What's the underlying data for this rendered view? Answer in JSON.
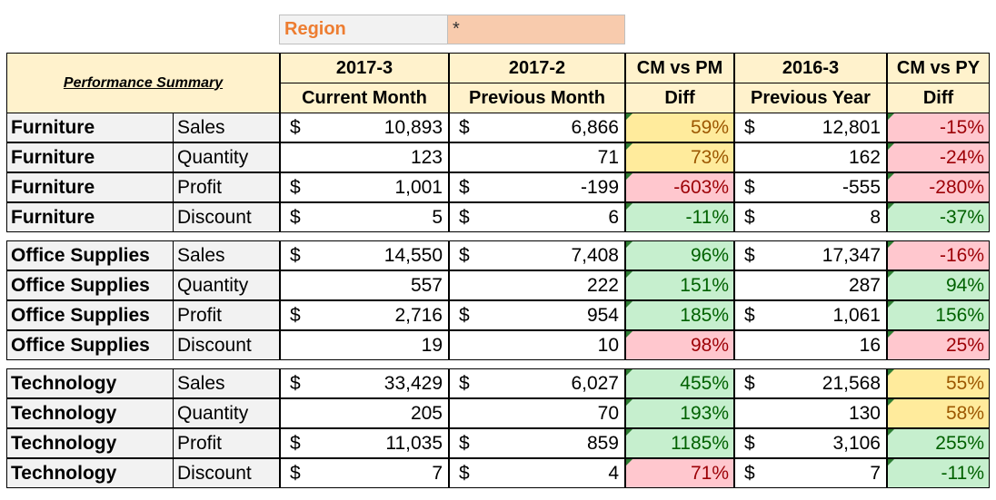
{
  "filter": {
    "label": "Region",
    "value": "*"
  },
  "header": {
    "title": "Performance Summary",
    "columns": [
      {
        "top": "2017-3",
        "bottom": "Current Month"
      },
      {
        "top": "2017-2",
        "bottom": "Previous Month"
      },
      {
        "top": "CM vs PM",
        "bottom": "Diff"
      },
      {
        "top": "2016-3",
        "bottom": "Previous Year"
      },
      {
        "top": "CM vs PY",
        "bottom": "Diff"
      }
    ]
  },
  "groups": [
    {
      "rows": [
        {
          "category": "Furniture",
          "metric": "Sales",
          "currency": "$",
          "cm": "10,893",
          "pm": "6,866",
          "cm_pm": "59%",
          "cm_pm_status": "y",
          "py": "12,801",
          "cm_py": "-15%",
          "cm_py_status": "r"
        },
        {
          "category": "Furniture",
          "metric": "Quantity",
          "currency": "",
          "cm": "123",
          "pm": "71",
          "cm_pm": "73%",
          "cm_pm_status": "y",
          "py": "162",
          "cm_py": "-24%",
          "cm_py_status": "r"
        },
        {
          "category": "Furniture",
          "metric": "Profit",
          "currency": "$",
          "cm": "1,001",
          "pm": "-199",
          "cm_pm": "-603%",
          "cm_pm_status": "r",
          "py": "-555",
          "cm_py": "-280%",
          "cm_py_status": "r"
        },
        {
          "category": "Furniture",
          "metric": "Discount",
          "currency": "$",
          "cm": "5",
          "pm": "6",
          "cm_pm": "-11%",
          "cm_pm_status": "g",
          "py": "8",
          "cm_py": "-37%",
          "cm_py_status": "g"
        }
      ]
    },
    {
      "rows": [
        {
          "category": "Office Supplies",
          "metric": "Sales",
          "currency": "$",
          "cm": "14,550",
          "pm": "7,408",
          "cm_pm": "96%",
          "cm_pm_status": "g",
          "py": "17,347",
          "cm_py": "-16%",
          "cm_py_status": "r"
        },
        {
          "category": "Office Supplies",
          "metric": "Quantity",
          "currency": "",
          "cm": "557",
          "pm": "222",
          "cm_pm": "151%",
          "cm_pm_status": "g",
          "py": "287",
          "cm_py": "94%",
          "cm_py_status": "g"
        },
        {
          "category": "Office Supplies",
          "metric": "Profit",
          "currency": "$",
          "cm": "2,716",
          "pm": "954",
          "cm_pm": "185%",
          "cm_pm_status": "g",
          "py": "1,061",
          "cm_py": "156%",
          "cm_py_status": "g"
        },
        {
          "category": "Office Supplies",
          "metric": "Discount",
          "currency": "",
          "cm": "19",
          "pm": "10",
          "cm_pm": "98%",
          "cm_pm_status": "r",
          "py": "16",
          "cm_py": "25%",
          "cm_py_status": "r"
        }
      ]
    },
    {
      "rows": [
        {
          "category": "Technology",
          "metric": "Sales",
          "currency": "$",
          "cm": "33,429",
          "pm": "6,027",
          "cm_pm": "455%",
          "cm_pm_status": "g",
          "py": "21,568",
          "cm_py": "55%",
          "cm_py_status": "y"
        },
        {
          "category": "Technology",
          "metric": "Quantity",
          "currency": "",
          "cm": "205",
          "pm": "70",
          "cm_pm": "193%",
          "cm_pm_status": "g",
          "py": "130",
          "cm_py": "58%",
          "cm_py_status": "y"
        },
        {
          "category": "Technology",
          "metric": "Profit",
          "currency": "$",
          "cm": "11,035",
          "pm": "859",
          "cm_pm": "1185%",
          "cm_pm_status": "g",
          "py": "3,106",
          "cm_py": "255%",
          "cm_py_status": "g"
        },
        {
          "category": "Technology",
          "metric": "Discount",
          "currency": "$",
          "cm": "7",
          "pm": "4",
          "cm_pm": "71%",
          "cm_pm_status": "r",
          "py": "7",
          "cm_py": "-11%",
          "cm_py_status": "g"
        }
      ]
    }
  ]
}
